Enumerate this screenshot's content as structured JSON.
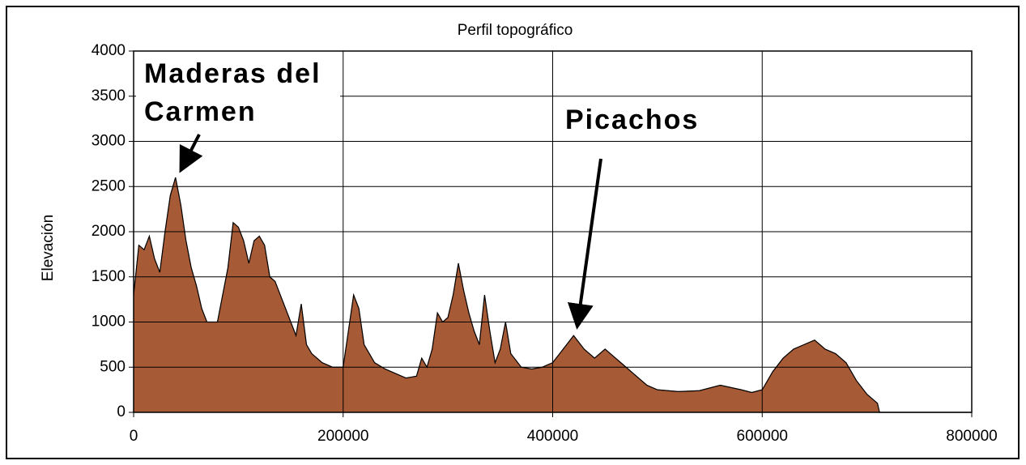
{
  "chart_data": {
    "type": "area",
    "title": "Perfil topográfico",
    "y_label": "Elevación",
    "color": "#a65a35",
    "grid": true,
    "xlim": [
      0,
      800000
    ],
    "xticks": [
      0,
      200000,
      400000,
      600000,
      800000
    ],
    "ylim": [
      0,
      4000
    ],
    "yticks": [
      0,
      500,
      1000,
      1500,
      2000,
      2500,
      3000,
      3500,
      4000
    ],
    "x": [
      0,
      5000,
      10000,
      15000,
      20000,
      25000,
      30000,
      35000,
      40000,
      45000,
      50000,
      55000,
      60000,
      65000,
      70000,
      75000,
      80000,
      85000,
      90000,
      95000,
      100000,
      105000,
      110000,
      115000,
      120000,
      125000,
      130000,
      135000,
      140000,
      145000,
      150000,
      155000,
      160000,
      165000,
      170000,
      180000,
      190000,
      200000,
      205000,
      210000,
      215000,
      220000,
      230000,
      240000,
      250000,
      260000,
      270000,
      275000,
      280000,
      285000,
      290000,
      295000,
      300000,
      305000,
      310000,
      315000,
      320000,
      325000,
      330000,
      335000,
      340000,
      345000,
      350000,
      355000,
      360000,
      370000,
      380000,
      390000,
      400000,
      410000,
      420000,
      430000,
      440000,
      450000,
      460000,
      470000,
      480000,
      490000,
      500000,
      520000,
      540000,
      560000,
      580000,
      590000,
      600000,
      610000,
      620000,
      630000,
      640000,
      650000,
      660000,
      670000,
      680000,
      690000,
      700000,
      710000,
      712000,
      800000
    ],
    "values": [
      1300,
      1850,
      1800,
      1950,
      1700,
      1550,
      2000,
      2400,
      2600,
      2300,
      1900,
      1600,
      1400,
      1150,
      1000,
      1000,
      1000,
      1300,
      1600,
      2100,
      2050,
      1900,
      1650,
      1900,
      1950,
      1850,
      1500,
      1450,
      1300,
      1150,
      1000,
      850,
      1200,
      750,
      650,
      550,
      500,
      500,
      900,
      1300,
      1150,
      750,
      550,
      480,
      430,
      380,
      400,
      600,
      500,
      700,
      1100,
      1000,
      1050,
      1300,
      1650,
      1350,
      1100,
      900,
      750,
      1300,
      900,
      550,
      700,
      1000,
      650,
      500,
      480,
      500,
      550,
      700,
      850,
      700,
      600,
      700,
      600,
      500,
      400,
      300,
      250,
      230,
      240,
      300,
      250,
      220,
      250,
      450,
      600,
      700,
      750,
      800,
      700,
      650,
      550,
      350,
      200,
      100,
      0,
      0
    ],
    "annotations": [
      {
        "lines": [
          "Maderas del",
          "Carmen"
        ]
      },
      {
        "lines": [
          "Picachos"
        ]
      }
    ]
  }
}
